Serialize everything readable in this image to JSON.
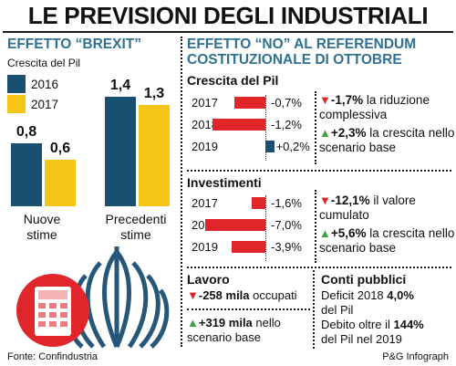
{
  "title": "LE PREVISIONI DEGLI INDUSTRIALI",
  "colors": {
    "accent": "#2e7191",
    "series_2016": "#1b4f72",
    "series_2017": "#f5c518",
    "negative": "#e0262b",
    "positive": "#3fa043"
  },
  "left": {
    "heading": "EFFETTO “BREXIT”",
    "subtitle": "Crescita del Pil",
    "legend": [
      "2016",
      "2017"
    ]
  },
  "right": {
    "heading": "EFFETTO “NO” AL REFERENDUM COSTITUZIONALE DI OTTOBRE",
    "pil": {
      "title": "Crescita del Pil",
      "rows": [
        {
          "year": "2017",
          "label": "-0,7%"
        },
        {
          "year": "2018",
          "label": "-1,2%"
        },
        {
          "year": "2019",
          "label": "+0,2%"
        }
      ],
      "note1_value": "-1,7%",
      "note1_text": " la riduzione complessiva",
      "note2_value": "+2,3%",
      "note2_text": " la crescita nello scenario base"
    },
    "investimenti": {
      "title": "Investimenti",
      "rows": [
        {
          "year": "2017",
          "label": "-1,6%"
        },
        {
          "year": "2018",
          "label": "-7,0%"
        },
        {
          "year": "2019",
          "label": "-3,9%"
        }
      ],
      "note1_value": "-12,1%",
      "note1_text": " il valore cumulato",
      "note2_value": "+5,6%",
      "note2_text": " la crescita nello scenario base"
    },
    "lavoro": {
      "title": "Lavoro",
      "line1_value": "-258 mila",
      "line1_text": " occupati",
      "line2_value": "+319 mila",
      "line2_text": " nello scenario base"
    },
    "conti": {
      "title": "Conti pubblici",
      "line1_text": "Deficit 2018 ",
      "line1_value": "4,0%",
      "line1_tail": "del Pil",
      "line2_text": "Debito oltre il ",
      "line2_value": "144%",
      "line2_tail": "del Pil nel 2019"
    }
  },
  "footer": {
    "source": "Fonte: Confindustria",
    "credit": "P&G Infograph"
  },
  "chart_data": [
    {
      "type": "bar",
      "title": "EFFETTO “BREXIT”",
      "subtitle": "Crescita del Pil",
      "categories": [
        "Nuove stime",
        "Precedenti stime"
      ],
      "series": [
        {
          "name": "2016",
          "values": [
            0.8,
            1.4
          ],
          "labels": [
            "0,8",
            "1,4"
          ]
        },
        {
          "name": "2017",
          "values": [
            0.6,
            1.3
          ],
          "labels": [
            "0,6",
            "1,3"
          ]
        }
      ],
      "ylim": [
        0,
        1.4
      ]
    },
    {
      "type": "bar",
      "orientation": "horizontal",
      "title": "Crescita del Pil",
      "categories": [
        "2017",
        "2018",
        "2019"
      ],
      "values": [
        -0.7,
        -1.2,
        0.2
      ],
      "unit": "%"
    },
    {
      "type": "bar",
      "orientation": "horizontal",
      "title": "Investimenti",
      "categories": [
        "2017",
        "2018",
        "2019"
      ],
      "values": [
        -1.6,
        -7.0,
        -3.9
      ],
      "unit": "%"
    }
  ]
}
